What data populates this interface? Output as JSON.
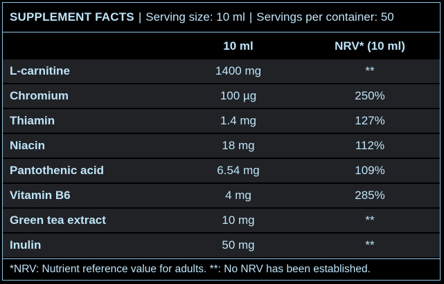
{
  "header": {
    "title": "SUPPLEMENT FACTS",
    "separator": "|",
    "serving_size": "Serving size: 10 ml",
    "servings_per_container": "Servings per container: 50"
  },
  "columns": {
    "ingredient": "",
    "amount": "10 ml",
    "nrv": "NRV* (10 ml)"
  },
  "rows": [
    {
      "name": "L-carnitine",
      "amount": "1400 mg",
      "nrv": "**"
    },
    {
      "name": "Chromium",
      "amount": "100 µg",
      "nrv": "250%"
    },
    {
      "name": "Thiamin",
      "amount": "1.4 mg",
      "nrv": "127%"
    },
    {
      "name": "Niacin",
      "amount": "18 mg",
      "nrv": "112%"
    },
    {
      "name": "Pantothenic acid",
      "amount": "6.54 mg",
      "nrv": "109%"
    },
    {
      "name": "Vitamin B6",
      "amount": "4 mg",
      "nrv": "285%"
    },
    {
      "name": "Green tea extract",
      "amount": "10 mg",
      "nrv": "**"
    },
    {
      "name": "Inulin",
      "amount": "50 mg",
      "nrv": "**"
    }
  ],
  "footer": {
    "note": "*NRV: Nutrient reference value for adults. **: No NRV has been established."
  },
  "colors": {
    "background": "#000000",
    "text": "#bfe3f7",
    "border": "#8fc8e8",
    "row_shade": "#202226"
  }
}
